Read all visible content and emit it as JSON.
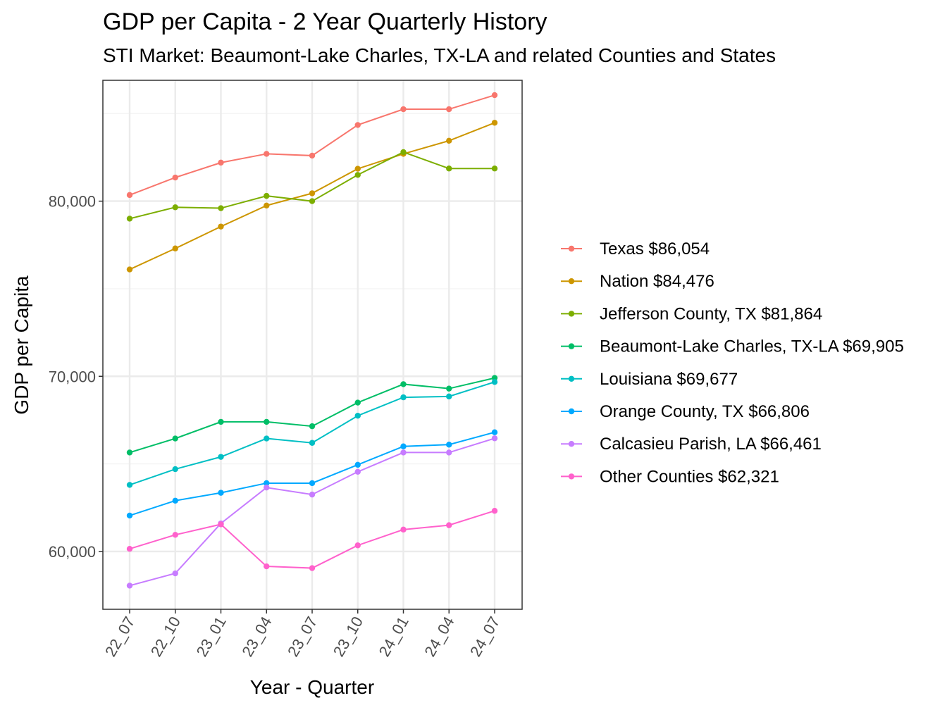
{
  "chart_data": {
    "type": "line",
    "title": "GDP per Capita - 2 Year Quarterly History",
    "subtitle": "STI Market: Beaumont-Lake Charles, TX-LA and related Counties and States",
    "xlabel": "Year - Quarter",
    "ylabel": "GDP per Capita",
    "categories": [
      "22_07",
      "22_10",
      "23_01",
      "23_04",
      "23_07",
      "23_10",
      "24_01",
      "24_04",
      "24_07"
    ],
    "ylim": [
      56700,
      86900
    ],
    "yticks": [
      60000,
      70000,
      80000
    ],
    "ytick_labels": [
      "60,000",
      "70,000",
      "80,000"
    ],
    "grid": true,
    "legend_position": "right",
    "series": [
      {
        "name": "Texas $86,054",
        "color": "#F8766D",
        "values": [
          80350,
          81350,
          82200,
          82700,
          82600,
          84350,
          85250,
          85250,
          86054
        ]
      },
      {
        "name": "Nation $84,476",
        "color": "#CD9600",
        "values": [
          76100,
          77300,
          78550,
          79750,
          80450,
          81850,
          82700,
          83450,
          84476
        ]
      },
      {
        "name": "Jefferson County, TX $81,864",
        "color": "#7CAE00",
        "values": [
          79000,
          79650,
          79600,
          80300,
          80000,
          81500,
          82800,
          81864,
          81864
        ]
      },
      {
        "name": "Beaumont-Lake Charles, TX-LA $69,905",
        "color": "#00BE67",
        "values": [
          65650,
          66450,
          67400,
          67400,
          67150,
          68500,
          69550,
          69300,
          69905
        ]
      },
      {
        "name": "Louisiana $69,677",
        "color": "#00BFC4",
        "values": [
          63800,
          64700,
          65400,
          66450,
          66200,
          67750,
          68800,
          68850,
          69677
        ]
      },
      {
        "name": "Orange County, TX $66,806",
        "color": "#00A9FF",
        "values": [
          62050,
          62900,
          63350,
          63900,
          63900,
          64950,
          66000,
          66100,
          66806
        ]
      },
      {
        "name": "Calcasieu Parish, LA $66,461",
        "color": "#C77CFF",
        "values": [
          58050,
          58750,
          61600,
          63650,
          63250,
          64550,
          65650,
          65650,
          66461
        ]
      },
      {
        "name": "Other Counties $62,321",
        "color": "#FF61CC",
        "values": [
          60150,
          60950,
          61550,
          59150,
          59050,
          60350,
          61250,
          61500,
          62321
        ]
      }
    ]
  }
}
